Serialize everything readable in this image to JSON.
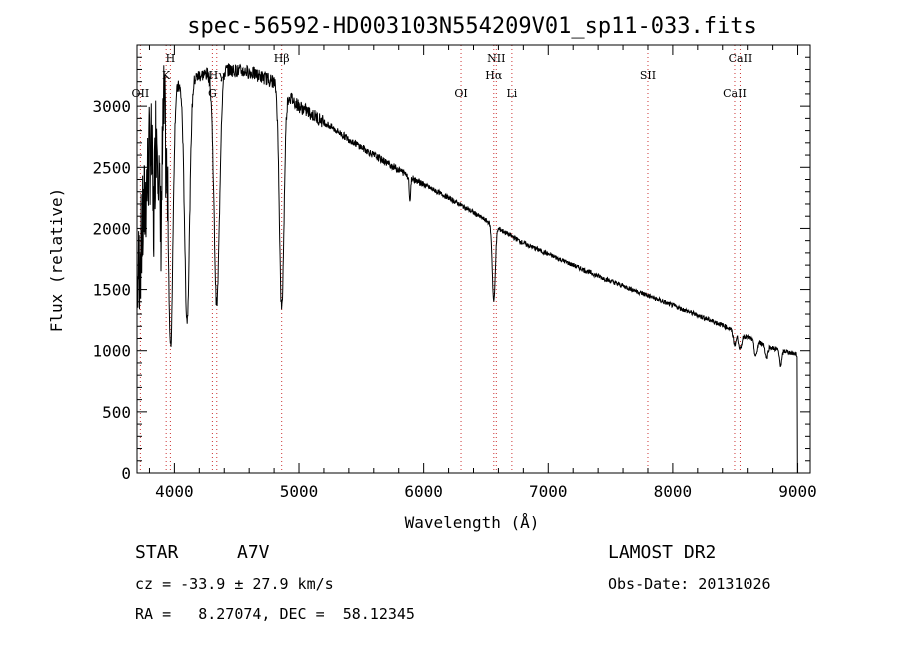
{
  "chart_data": {
    "type": "line",
    "title": "spec-56592-HD003103N554209V01_sp11-033.fits",
    "xlabel": "Wavelength (Å)",
    "ylabel": "Flux (relative)",
    "xlim": [
      3700,
      9100
    ],
    "ylim": [
      0,
      3500
    ],
    "xticks": [
      4000,
      5000,
      6000,
      7000,
      8000,
      9000
    ],
    "yticks": [
      0,
      500,
      1000,
      1500,
      2000,
      2500,
      3000
    ],
    "grid": false,
    "line_color": "#000000",
    "marker_color": "#cc3333",
    "continuum": {
      "x": [
        3700,
        3800,
        3900,
        4000,
        4200,
        4400,
        4600,
        4800,
        5000,
        5200,
        5400,
        5600,
        5800,
        6000,
        6200,
        6400,
        6600,
        6800,
        7000,
        7200,
        7400,
        7600,
        7800,
        8000,
        8200,
        8400,
        8600,
        8800,
        9000
      ],
      "y": [
        1500,
        2600,
        3050,
        3150,
        3250,
        3300,
        3280,
        3200,
        3000,
        2870,
        2730,
        2600,
        2480,
        2360,
        2250,
        2130,
        2000,
        1880,
        1790,
        1700,
        1610,
        1530,
        1450,
        1370,
        1290,
        1210,
        1110,
        1020,
        970
      ]
    },
    "absorption_lines": [
      {
        "x": 3833,
        "depth": 700,
        "width": 8
      },
      {
        "x": 3890,
        "depth": 1000,
        "width": 12
      },
      {
        "x": 3934,
        "depth": 300,
        "width": 8
      },
      {
        "x": 3970,
        "depth": 2100,
        "width": 18
      },
      {
        "x": 4102,
        "depth": 1950,
        "width": 20
      },
      {
        "x": 4340,
        "depth": 1900,
        "width": 22
      },
      {
        "x": 4861,
        "depth": 1800,
        "width": 18
      },
      {
        "x": 5890,
        "depth": 200,
        "width": 6
      },
      {
        "x": 6563,
        "depth": 620,
        "width": 12
      },
      {
        "x": 8498,
        "depth": 110,
        "width": 12
      },
      {
        "x": 8542,
        "depth": 130,
        "width": 12
      },
      {
        "x": 8662,
        "depth": 130,
        "width": 12
      },
      {
        "x": 8750,
        "depth": 100,
        "width": 10
      },
      {
        "x": 8863,
        "depth": 120,
        "width": 10
      }
    ],
    "spectral_lines": [
      {
        "label": "OII",
        "x": 3727,
        "row": 3
      },
      {
        "label": "H",
        "x": 3968,
        "row": 1
      },
      {
        "label": "K",
        "x": 3934,
        "row": 2
      },
      {
        "label": "Hγ",
        "x": 4340,
        "row": 2
      },
      {
        "label": "G",
        "x": 4305,
        "row": 3
      },
      {
        "label": "Hβ",
        "x": 4861,
        "row": 1
      },
      {
        "label": "OI",
        "x": 6300,
        "row": 3
      },
      {
        "label": "NII",
        "x": 6583,
        "row": 1
      },
      {
        "label": "Hα",
        "x": 6563,
        "row": 2
      },
      {
        "label": "Li",
        "x": 6708,
        "row": 3
      },
      {
        "label": "SII",
        "x": 7800,
        "row": 2
      },
      {
        "label": "CaII",
        "x": 8542,
        "row": 1
      },
      {
        "label": "CaII",
        "x": 8498,
        "row": 3
      }
    ]
  },
  "info": {
    "object_type": "STAR",
    "subclass": "A7V",
    "survey": "LAMOST DR2",
    "cz": "cz = -33.9 ± 27.9 km/s",
    "obs_date": "Obs-Date: 20131026",
    "coords": "RA =   8.27074, DEC =  58.12345"
  }
}
